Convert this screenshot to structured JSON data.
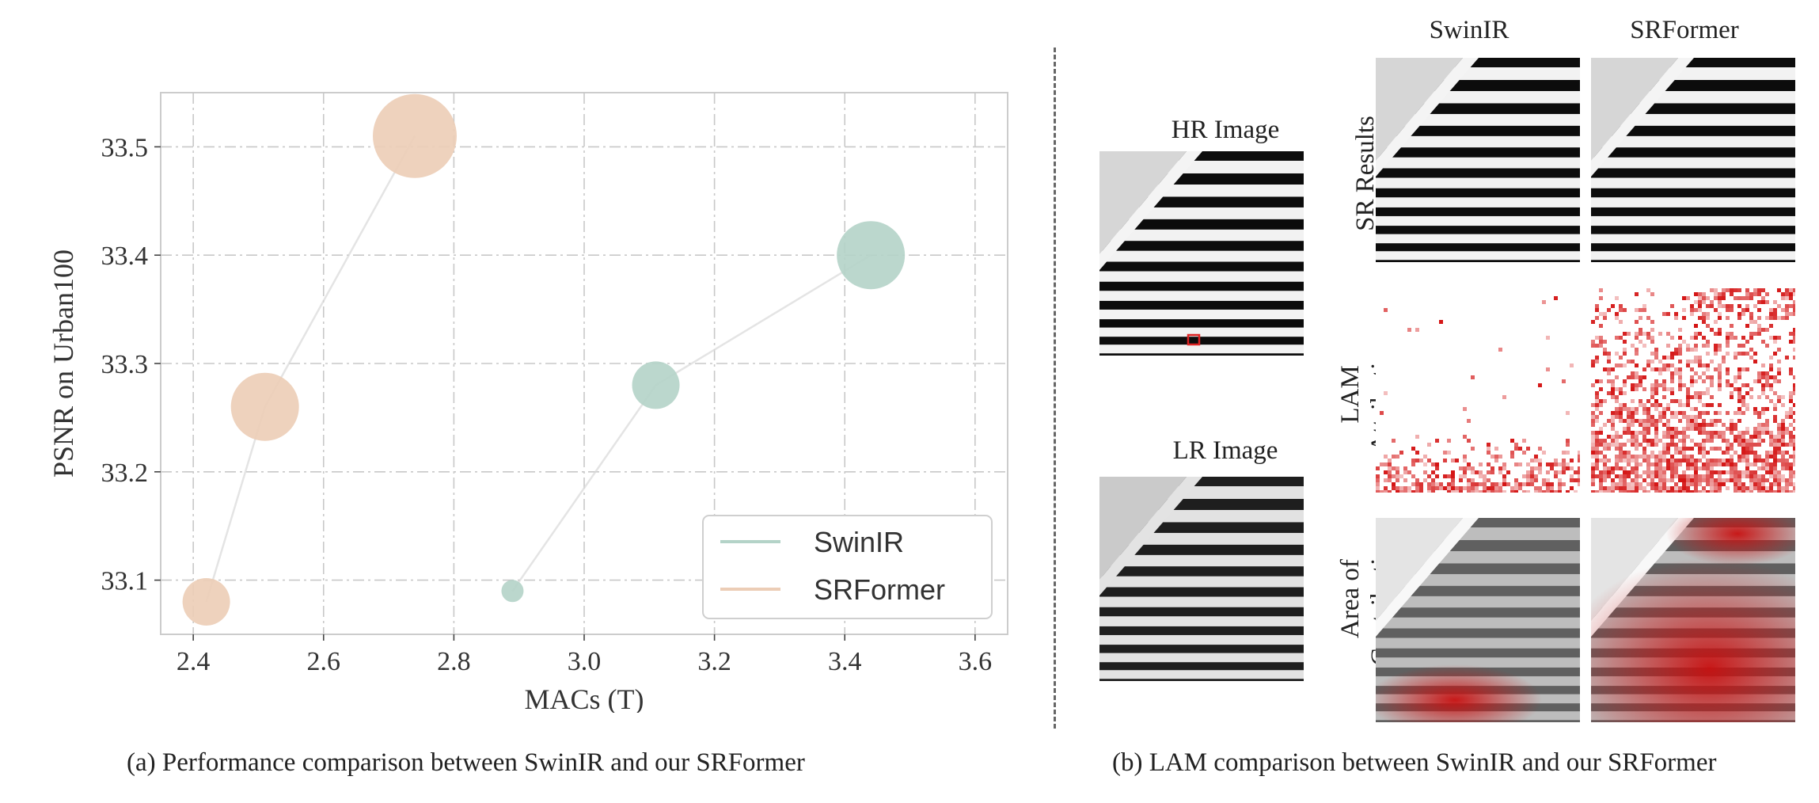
{
  "chart_data": {
    "type": "scatter",
    "xlabel": "MACs (T)",
    "ylabel": "PSNR on Urban100",
    "xlim": [
      2.35,
      3.65
    ],
    "ylim": [
      33.05,
      33.55
    ],
    "xticks": [
      "2.4",
      "2.6",
      "2.8",
      "3.0",
      "3.2",
      "3.4",
      "3.6"
    ],
    "yticks": [
      "33.1",
      "33.2",
      "33.3",
      "33.4",
      "33.5"
    ],
    "grid": true,
    "legend_position": "bottom-right",
    "series": [
      {
        "name": "SwinIR",
        "color": "#b4d3c8",
        "x": [
          2.89,
          3.11,
          3.44
        ],
        "y": [
          33.09,
          33.28,
          33.4
        ],
        "size_rank": [
          1,
          2,
          3
        ]
      },
      {
        "name": "SRFormer",
        "color": "#eccdb6",
        "x": [
          2.42,
          2.51,
          2.74
        ],
        "y": [
          33.08,
          33.26,
          33.51
        ],
        "size_rank": [
          2,
          3,
          4
        ]
      }
    ]
  },
  "captions": {
    "left": "(a) Performance comparison between SwinIR and our SRFormer",
    "right": "(b) LAM comparison between SwinIR and our SRFormer"
  },
  "lam": {
    "hr_title": "HR Image",
    "lr_title": "LR Image",
    "col_swinir": "SwinIR",
    "col_srformer": "SRFormer",
    "row_sr": "SR Results",
    "row_lam_1": "LAM",
    "row_lam_2": "Attribution",
    "row_area_1": "Area of",
    "row_area_2": "Contribution"
  }
}
